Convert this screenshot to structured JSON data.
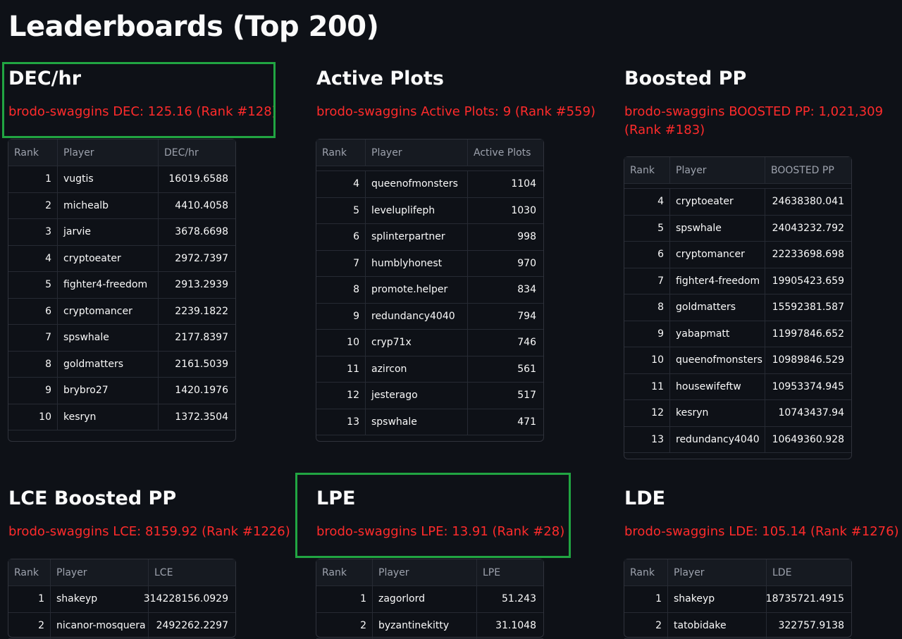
{
  "page": {
    "title": "Leaderboards (Top 200)"
  },
  "boards": [
    {
      "title": "DEC/hr",
      "rank_line": "brodo-swaggins DEC: 125.16 (Rank #128)",
      "columns": [
        "Rank",
        "Player",
        "DEC/hr"
      ],
      "rows": [
        [
          "1",
          "vugtis",
          "16019.6588"
        ],
        [
          "2",
          "michealb",
          "4410.4058"
        ],
        [
          "3",
          "jarvie",
          "3678.6698"
        ],
        [
          "4",
          "cryptoeater",
          "2972.7397"
        ],
        [
          "5",
          "fighter4-freedom",
          "2913.2939"
        ],
        [
          "6",
          "cryptomancer",
          "2239.1822"
        ],
        [
          "7",
          "spswhale",
          "2177.8397"
        ],
        [
          "8",
          "goldmatters",
          "2161.5039"
        ],
        [
          "9",
          "brybro27",
          "1420.1976"
        ],
        [
          "10",
          "kesryn",
          "1372.3504"
        ]
      ]
    },
    {
      "title": "Active Plots",
      "rank_line": "brodo-swaggins Active Plots: 9 (Rank #559)",
      "columns": [
        "Rank",
        "Player",
        "Active Plots"
      ],
      "rows": [
        [
          "4",
          "queenofmonsters",
          "1104"
        ],
        [
          "5",
          "leveluplifeph",
          "1030"
        ],
        [
          "6",
          "splinterpartner",
          "998"
        ],
        [
          "7",
          "humblyhonest",
          "970"
        ],
        [
          "8",
          "promote.helper",
          "834"
        ],
        [
          "9",
          "redundancy4040",
          "794"
        ],
        [
          "10",
          "cryp71x",
          "746"
        ],
        [
          "11",
          "azircon",
          "561"
        ],
        [
          "12",
          "jesterago",
          "517"
        ],
        [
          "13",
          "spswhale",
          "471"
        ]
      ]
    },
    {
      "title": "Boosted PP",
      "rank_line": "brodo-swaggins BOOSTED PP: 1,021,309 (Rank #183)",
      "columns": [
        "Rank",
        "Player",
        "BOOSTED PP"
      ],
      "rows": [
        [
          "4",
          "cryptoeater",
          "24638380.041"
        ],
        [
          "5",
          "spswhale",
          "24043232.792"
        ],
        [
          "6",
          "cryptomancer",
          "22233698.698"
        ],
        [
          "7",
          "fighter4-freedom",
          "19905423.659"
        ],
        [
          "8",
          "goldmatters",
          "15592381.587"
        ],
        [
          "9",
          "yabapmatt",
          "11997846.652"
        ],
        [
          "10",
          "queenofmonsters",
          "10989846.529"
        ],
        [
          "11",
          "housewifeftw",
          "10953374.945"
        ],
        [
          "12",
          "kesryn",
          "10743437.94"
        ],
        [
          "13",
          "redundancy4040",
          "10649360.928"
        ]
      ]
    },
    {
      "title": "LCE Boosted PP",
      "rank_line": "brodo-swaggins LCE: 8159.92 (Rank #1226)",
      "columns": [
        "Rank",
        "Player",
        "LCE"
      ],
      "rows": [
        [
          "1",
          "shakeyp",
          "314228156.0929"
        ],
        [
          "2",
          "nicanor-mosquera",
          "2492262.2297"
        ]
      ]
    },
    {
      "title": "LPE",
      "rank_line": "brodo-swaggins LPE: 13.91 (Rank #28)",
      "columns": [
        "Rank",
        "Player",
        "LPE"
      ],
      "rows": [
        [
          "1",
          "zagorlord",
          "51.243"
        ],
        [
          "2",
          "byzantinekitty",
          "31.1048"
        ]
      ]
    },
    {
      "title": "LDE",
      "rank_line": "brodo-swaggins LDE: 105.14 (Rank #1276)",
      "columns": [
        "Rank",
        "Player",
        "LDE"
      ],
      "rows": [
        [
          "1",
          "shakeyp",
          "18735721.4915"
        ],
        [
          "2",
          "tatobidake",
          "322757.9138"
        ]
      ]
    }
  ]
}
